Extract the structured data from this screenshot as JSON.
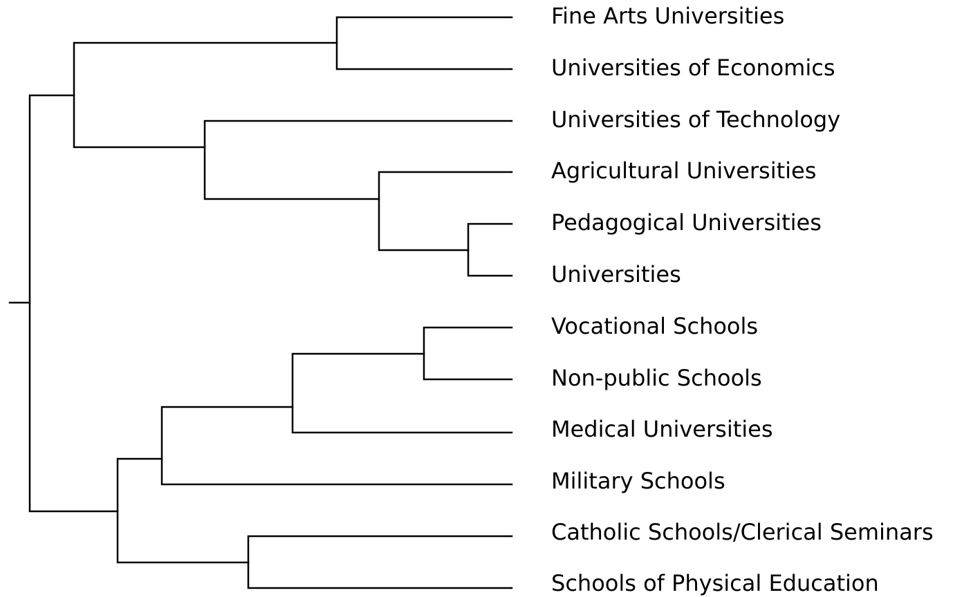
{
  "leaves": [
    "Fine Arts Universities",
    "Universities of Economics",
    "Universities of Technology",
    "Agricultural Universities",
    "Pedagogical Universities",
    "Universities",
    "Vocational Schools",
    "Non-public Schools",
    "Medical Universities",
    "Military Schools",
    "Catholic Schools/Clerical Seminars",
    "Schools of Physical Education"
  ]
}
